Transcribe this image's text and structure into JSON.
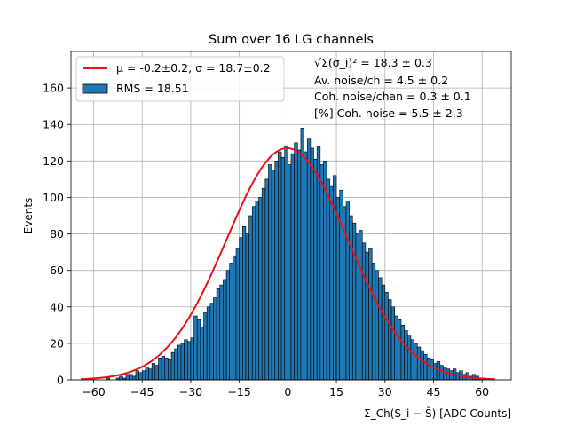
{
  "chart_data": {
    "type": "bar",
    "title": "Sum over 16 LG channels",
    "xlabel": "Σ_Ch(S_i − S̄) [ADC Counts]",
    "ylabel": "Events",
    "xlim": [
      -67,
      69
    ],
    "ylim": [
      0,
      180
    ],
    "xticks": [
      -60,
      -45,
      -30,
      -15,
      0,
      15,
      30,
      45,
      60
    ],
    "yticks": [
      0,
      20,
      40,
      60,
      80,
      100,
      120,
      140,
      160
    ],
    "grid": true,
    "bin_width": 1,
    "bin_start": -56,
    "values": [
      1,
      0,
      0,
      1,
      2,
      1,
      3,
      3,
      2,
      5,
      4,
      5,
      7,
      6,
      9,
      8,
      12,
      13,
      12,
      11,
      15,
      17,
      19,
      20,
      22,
      21,
      23,
      35,
      33,
      29,
      37,
      40,
      42,
      45,
      50,
      52,
      55,
      60,
      64,
      68,
      72,
      78,
      84,
      80,
      90,
      95,
      98,
      100,
      105,
      110,
      118,
      115,
      120,
      125,
      122,
      128,
      118,
      124,
      130,
      126,
      138,
      125,
      132,
      127,
      121,
      128,
      118,
      120,
      110,
      106,
      112,
      100,
      104,
      95,
      98,
      90,
      86,
      80,
      82,
      75,
      70,
      72,
      64,
      60,
      56,
      52,
      48,
      44,
      40,
      35,
      33,
      30,
      27,
      24,
      22,
      20,
      18,
      16,
      14,
      12,
      11,
      9,
      10,
      8,
      7,
      6,
      5,
      6,
      4,
      5,
      3,
      4,
      2,
      3,
      2,
      1,
      1
    ],
    "fit": {
      "type": "gaussian",
      "mu": -0.2,
      "sigma": 18.7,
      "amplitude": 127,
      "x_range": [
        -64,
        64
      ],
      "color": "#e8111a"
    },
    "bar_color": "#1f77b4",
    "legend": {
      "placement": "top-left",
      "entries": [
        {
          "label": "μ = -0.2±0.2, σ = 18.7±0.2",
          "kind": "line",
          "color": "#e8111a"
        },
        {
          "label": "RMS = 18.51",
          "kind": "patch",
          "color": "#1f77b4"
        }
      ]
    },
    "annotations": [
      "√Σ(σ_i)² = 18.3 ± 0.3",
      "Av. noise/ch = 4.5 ± 0.2",
      "Coh. noise/chan = 0.3 ± 0.1",
      "[%] Coh. noise = 5.5 ± 2.3"
    ]
  }
}
